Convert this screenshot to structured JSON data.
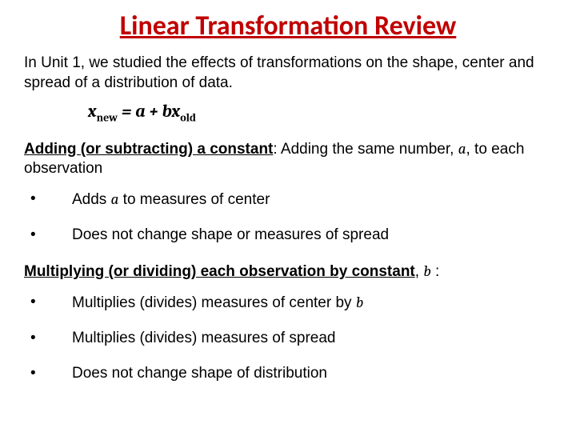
{
  "title": {
    "text": "Linear Transformation Review",
    "color": "#c00000"
  },
  "intro": "In Unit 1, we studied the effects of transformations on the shape, center and spread of a distribution of data.",
  "formula": {
    "lhs_var": "x",
    "lhs_sub": "new",
    "eq": " = ",
    "a": "a",
    "plus": " + ",
    "b": "b",
    "rhs_var": "x",
    "rhs_sub": "old"
  },
  "section1": {
    "lead": "Adding (or subtracting) a constant",
    "after": ":  Adding the same number, ",
    "var": "a",
    "after2": ", to each observation",
    "bullets": [
      {
        "pre": "Adds ",
        "var": "a",
        "post": " to measures of center"
      },
      {
        "text": "Does not change shape or measures of spread"
      }
    ]
  },
  "section2": {
    "lead": "Multiplying (or dividing) each observation by constant",
    "after": ", ",
    "var": "b",
    "after2": " :",
    "bullets": [
      {
        "pre": "Multiplies (divides) measures of center by ",
        "var": "b",
        "post": ""
      },
      {
        "text": "Multiplies (divides) measures of spread"
      },
      {
        "text": "Does not change shape of distribution"
      }
    ]
  },
  "bullet_char": "•"
}
